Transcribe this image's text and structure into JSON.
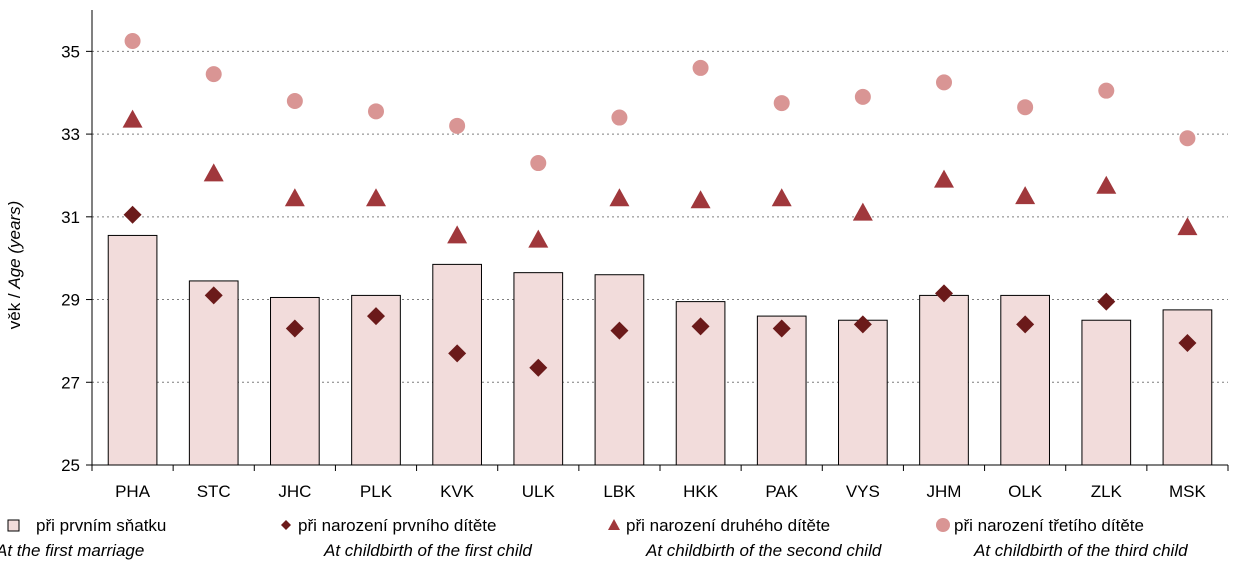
{
  "chart_data": {
    "type": "bar",
    "categories": [
      "PHA",
      "STC",
      "JHC",
      "PLK",
      "KVK",
      "ULK",
      "LBK",
      "HKK",
      "PAK",
      "VYS",
      "JHM",
      "OLK",
      "ZLK",
      "MSK"
    ],
    "ylim": [
      25,
      36
    ],
    "yticks": [
      25,
      27,
      29,
      31,
      33,
      35
    ],
    "ylabel_cz": "věk / ",
    "ylabel_en": "Age (years)",
    "grid": "horizontal dotted",
    "legend_position": "bottom",
    "series": [
      {
        "name_cz": "při prvním sňatku",
        "name_en": "At the first marriage",
        "marker": "bar",
        "color": "#f2dcdb",
        "stroke": "#000000",
        "values": [
          30.55,
          29.45,
          29.05,
          29.1,
          29.85,
          29.65,
          29.6,
          28.95,
          28.6,
          28.5,
          29.1,
          29.1,
          28.5,
          28.75
        ]
      },
      {
        "name_cz": "při narození prvního dítěte",
        "name_en": "At childbirth of the first child",
        "marker": "diamond",
        "color": "#6b1a1a",
        "values": [
          31.05,
          29.1,
          28.3,
          28.6,
          27.7,
          27.35,
          28.25,
          28.35,
          28.3,
          28.4,
          29.15,
          28.4,
          28.95,
          27.95
        ]
      },
      {
        "name_cz": "při narození druhého dítěte",
        "name_en": "At childbirth of the second child",
        "marker": "triangle",
        "color": "#a0383c",
        "values": [
          33.35,
          32.05,
          31.45,
          31.45,
          30.55,
          30.45,
          31.45,
          31.4,
          31.45,
          31.1,
          31.9,
          31.5,
          31.75,
          30.75
        ]
      },
      {
        "name_cz": "při narození třetího dítěte",
        "name_en": "At childbirth of the third child",
        "marker": "circle",
        "color": "#d99594",
        "values": [
          35.25,
          34.45,
          33.8,
          33.55,
          33.2,
          32.3,
          33.4,
          34.6,
          33.75,
          33.9,
          34.25,
          33.65,
          34.05,
          32.9
        ]
      }
    ]
  }
}
